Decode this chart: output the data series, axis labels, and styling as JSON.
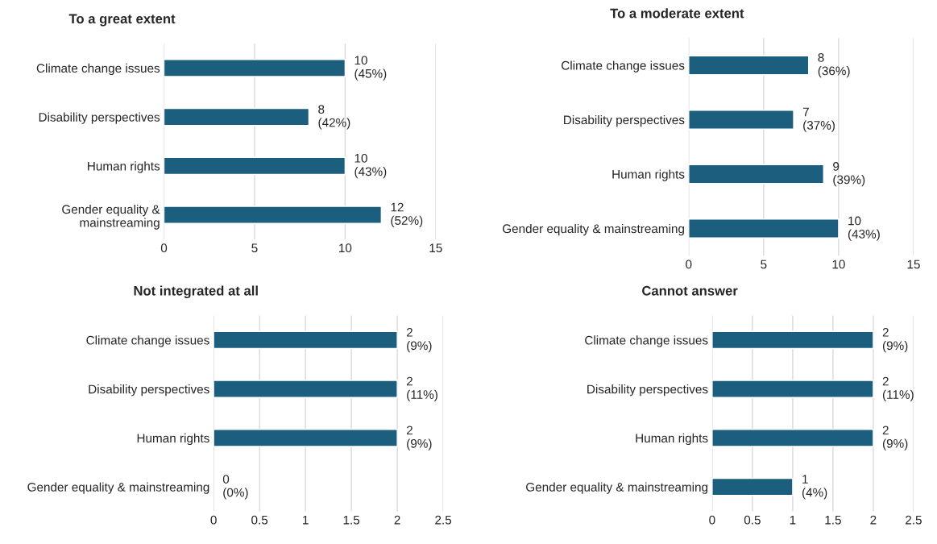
{
  "chart_data": [
    {
      "type": "bar",
      "orientation": "horizontal",
      "title": "To a great extent",
      "categories": [
        "Climate change issues",
        "Disability perspectives",
        "Human rights",
        "Gender equality &\nmainstreaming"
      ],
      "values": [
        10,
        8,
        10,
        12
      ],
      "value_labels": [
        "10\n(45%)",
        "8\n(42%)",
        "10\n(43%)",
        "12\n(52%)"
      ],
      "color": "#1b5e7e",
      "xlim": [
        0,
        15
      ],
      "xticks": [
        0,
        5,
        10,
        15
      ],
      "grid": "x",
      "legend": false
    },
    {
      "type": "bar",
      "orientation": "horizontal",
      "title": "To a moderate extent",
      "categories": [
        "Climate change issues",
        "Disability perspectives",
        "Human rights",
        "Gender equality & mainstreaming"
      ],
      "values": [
        8,
        7,
        9,
        10
      ],
      "value_labels": [
        "8\n(36%)",
        "7\n(37%)",
        "9\n(39%)",
        "10\n(43%)"
      ],
      "color": "#1b5e7e",
      "xlim": [
        0,
        15
      ],
      "xticks": [
        0,
        5,
        10,
        15
      ],
      "grid": "x",
      "legend": false
    },
    {
      "type": "bar",
      "orientation": "horizontal",
      "title": "Not integrated at all",
      "categories": [
        "Climate change issues",
        "Disability perspectives",
        "Human rights",
        "Gender equality & mainstreaming"
      ],
      "values": [
        2,
        2,
        2,
        0
      ],
      "value_labels": [
        "2\n(9%)",
        "2\n(11%)",
        "2\n(9%)",
        "0\n(0%)"
      ],
      "color": "#1b5e7e",
      "xlim": [
        0,
        2.5
      ],
      "xticks": [
        0,
        0.5,
        1,
        1.5,
        2,
        2.5
      ],
      "grid": "x",
      "legend": false
    },
    {
      "type": "bar",
      "orientation": "horizontal",
      "title": "Cannot answer",
      "categories": [
        "Climate change issues",
        "Disability perspectives",
        "Human rights",
        "Gender equality & mainstreaming"
      ],
      "values": [
        2,
        2,
        2,
        1
      ],
      "value_labels": [
        "2\n(9%)",
        "2\n(11%)",
        "2\n(9%)",
        "1\n(4%)"
      ],
      "color": "#1b5e7e",
      "xlim": [
        0,
        2.5
      ],
      "xticks": [
        0,
        0.5,
        1,
        1.5,
        2,
        2.5
      ],
      "grid": "x",
      "legend": false
    }
  ]
}
